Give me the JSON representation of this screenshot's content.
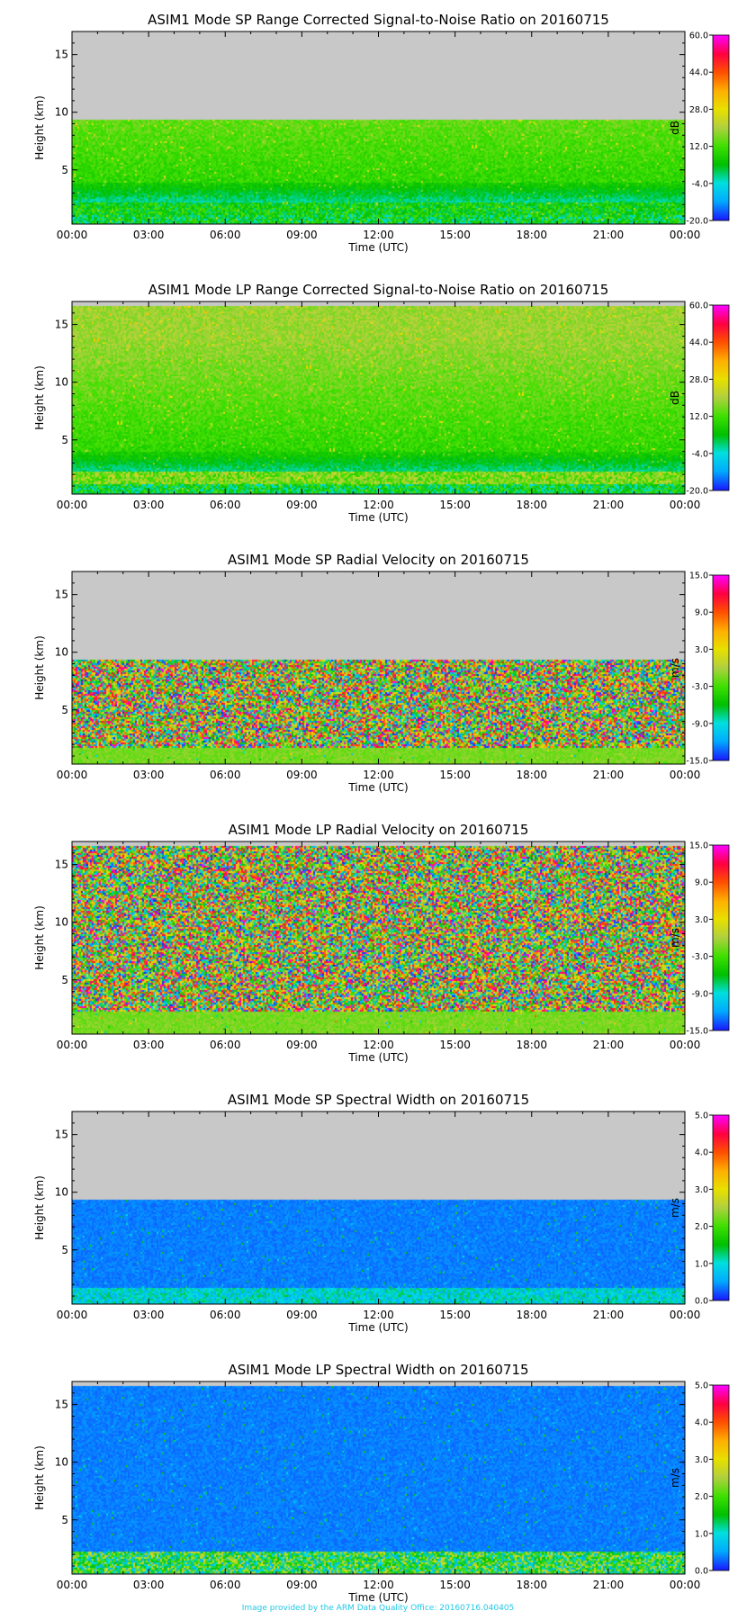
{
  "chart_data": [
    {
      "type": "heatmap",
      "title": "ASIM1 Mode SP Range Corrected Signal-to-Noise Ratio on 20160715",
      "xlabel": "Time (UTC)",
      "ylabel": "Height (km)",
      "x_ticks": [
        "00:00",
        "03:00",
        "06:00",
        "09:00",
        "12:00",
        "15:00",
        "18:00",
        "21:00",
        "00:00"
      ],
      "xlim": [
        0,
        24
      ],
      "ylim": [
        0.3,
        17
      ],
      "y_ticks": [
        5,
        10,
        15
      ],
      "colorbar_label": "dB",
      "colorbar_ticks": [
        "60.0",
        "44.0",
        "28.0",
        "12.0",
        "-4.0",
        "-20.0"
      ],
      "colorbar_range": [
        -20,
        60
      ],
      "data_top_km": 9.3,
      "field": "snr",
      "mode": "SP"
    },
    {
      "type": "heatmap",
      "title": "ASIM1 Mode LP Range Corrected Signal-to-Noise Ratio on 20160715",
      "xlabel": "Time (UTC)",
      "ylabel": "Height (km)",
      "x_ticks": [
        "00:00",
        "03:00",
        "06:00",
        "09:00",
        "12:00",
        "15:00",
        "18:00",
        "21:00",
        "00:00"
      ],
      "xlim": [
        0,
        24
      ],
      "ylim": [
        0.3,
        17
      ],
      "y_ticks": [
        5,
        10,
        15
      ],
      "colorbar_label": "dB",
      "colorbar_ticks": [
        "60.0",
        "44.0",
        "28.0",
        "12.0",
        "-4.0",
        "-20.0"
      ],
      "colorbar_range": [
        -20,
        60
      ],
      "data_top_km": 16.6,
      "field": "snr",
      "mode": "LP"
    },
    {
      "type": "heatmap",
      "title": "ASIM1 Mode SP Radial Velocity  on 20160715",
      "xlabel": "Time (UTC)",
      "ylabel": "Height (km)",
      "x_ticks": [
        "00:00",
        "03:00",
        "06:00",
        "09:00",
        "12:00",
        "15:00",
        "18:00",
        "21:00",
        "00:00"
      ],
      "xlim": [
        0,
        24
      ],
      "ylim": [
        0.3,
        17
      ],
      "y_ticks": [
        5,
        10,
        15
      ],
      "colorbar_label": "m/s",
      "colorbar_ticks": [
        "15.0",
        "9.0",
        "3.0",
        "-3.0",
        "-9.0",
        "-15.0"
      ],
      "colorbar_range": [
        -15,
        15
      ],
      "data_top_km": 9.3,
      "field": "velocity",
      "mode": "SP"
    },
    {
      "type": "heatmap",
      "title": "ASIM1 Mode LP Radial Velocity  on 20160715",
      "xlabel": "Time (UTC)",
      "ylabel": "Height (km)",
      "x_ticks": [
        "00:00",
        "03:00",
        "06:00",
        "09:00",
        "12:00",
        "15:00",
        "18:00",
        "21:00",
        "00:00"
      ],
      "xlim": [
        0,
        24
      ],
      "ylim": [
        0.3,
        17
      ],
      "y_ticks": [
        5,
        10,
        15
      ],
      "colorbar_label": "m/s",
      "colorbar_ticks": [
        "15.0",
        "9.0",
        "3.0",
        "-3.0",
        "-9.0",
        "-15.0"
      ],
      "colorbar_range": [
        -15,
        15
      ],
      "data_top_km": 16.6,
      "field": "velocity",
      "mode": "LP"
    },
    {
      "type": "heatmap",
      "title": "ASIM1 Mode SP Spectral Width  on 20160715",
      "xlabel": "Time (UTC)",
      "ylabel": "Height (km)",
      "x_ticks": [
        "00:00",
        "03:00",
        "06:00",
        "09:00",
        "12:00",
        "15:00",
        "18:00",
        "21:00",
        "00:00"
      ],
      "xlim": [
        0,
        24
      ],
      "ylim": [
        0.3,
        17
      ],
      "y_ticks": [
        5,
        10,
        15
      ],
      "colorbar_label": "m/s",
      "colorbar_ticks": [
        "5.0",
        "4.0",
        "3.0",
        "2.0",
        "1.0",
        "0.0"
      ],
      "colorbar_range": [
        0,
        5
      ],
      "data_top_km": 9.3,
      "field": "width",
      "mode": "SP"
    },
    {
      "type": "heatmap",
      "title": "ASIM1 Mode LP Spectral Width  on 20160715",
      "xlabel": "Time (UTC)",
      "ylabel": "Height (km)",
      "x_ticks": [
        "00:00",
        "03:00",
        "06:00",
        "09:00",
        "12:00",
        "15:00",
        "18:00",
        "21:00",
        "00:00"
      ],
      "xlim": [
        0,
        24
      ],
      "ylim": [
        0.3,
        17
      ],
      "y_ticks": [
        5,
        10,
        15
      ],
      "colorbar_label": "m/s",
      "colorbar_ticks": [
        "5.0",
        "4.0",
        "3.0",
        "2.0",
        "1.0",
        "0.0"
      ],
      "colorbar_range": [
        0,
        5
      ],
      "data_top_km": 16.6,
      "field": "width",
      "mode": "LP"
    }
  ],
  "colors": {
    "missing_gray": "#c8c8c8",
    "colorbar_stops": [
      "#1a1aff",
      "#00aaff",
      "#00e0e0",
      "#00c000",
      "#40e000",
      "#b0d040",
      "#e8e000",
      "#ffb000",
      "#ff5000",
      "#ff0040",
      "#ff00ff"
    ],
    "footer": "#1ec9e6"
  },
  "footer": {
    "text": "Image provided by the ARM Data Quality Office: 20160716.040405"
  }
}
